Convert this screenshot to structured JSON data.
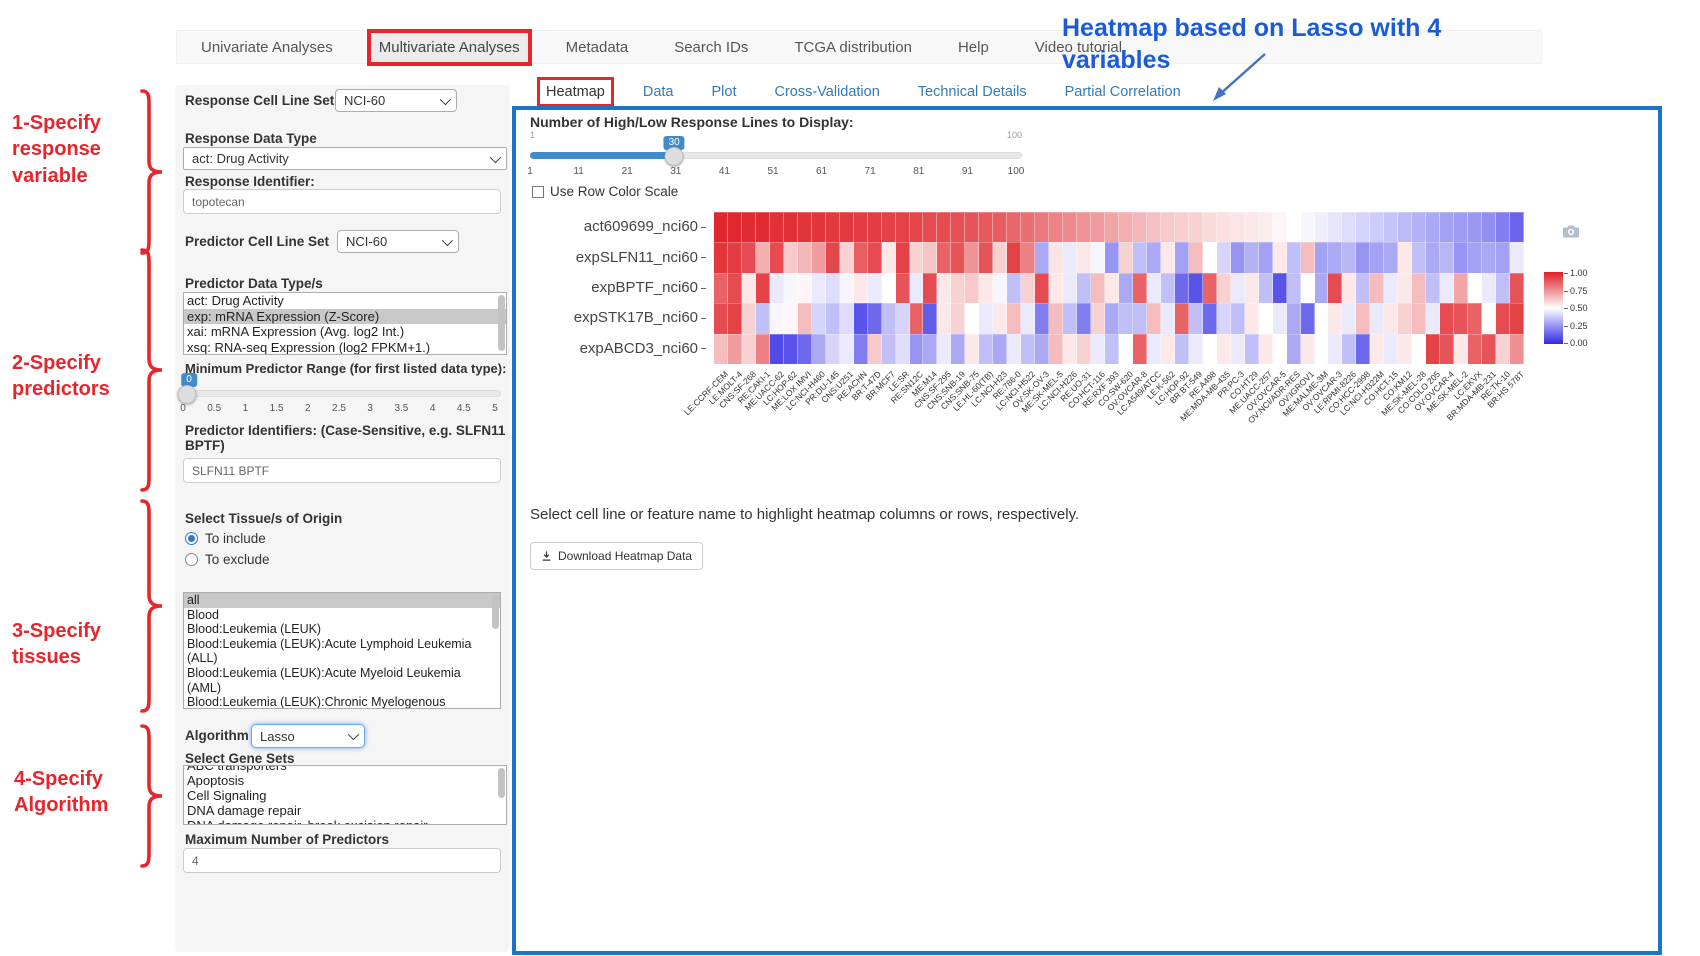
{
  "nav": {
    "items": [
      "Univariate Analyses",
      "Multivariate Analyses",
      "Metadata",
      "Search IDs",
      "TCGA distribution",
      "Help",
      "Video tutorial"
    ],
    "active": "Multivariate Analyses"
  },
  "annotations": {
    "step1": "1-Specify response variable",
    "step2": "2-Specify predictors",
    "step3": "3-Specify tissues",
    "step4": "4-Specify Algorithm",
    "heatmap_note": "Heatmap based on Lasso with 4 variables"
  },
  "colors": {
    "annotation_red": "#e6262c",
    "annotation_blue": "#1b5cd6",
    "panel_border": "#1b74c5",
    "link_blue": "#337ab7",
    "slider_blue": "#428bca",
    "heat_red": "#de1e24",
    "heat_blue": "#3028e4",
    "list_highlight": "#c8c8c8"
  },
  "sidebar": {
    "response_cell_line_set_label": "Response Cell Line Set",
    "response_cell_line_set_value": "NCI-60",
    "response_data_type_label": "Response Data Type",
    "response_data_type_value": "act: Drug Activity",
    "response_identifier_label": "Response Identifier:",
    "response_identifier_value": "topotecan",
    "predictor_cell_line_set_label": "Predictor Cell Line Set",
    "predictor_cell_line_set_value": "NCI-60",
    "predictor_data_types_label": "Predictor Data Type/s",
    "predictor_data_types_options": [
      "act: Drug Activity",
      "exp: mRNA Expression (Z-Score)",
      "xai: mRNA Expression (Avg. log2 Int.)",
      "xsq: RNA-seq Expression (log2 FPKM+1.)"
    ],
    "predictor_data_types_selected": "exp: mRNA Expression (Z-Score)",
    "min_predictor_range_label": "Minimum Predictor Range (for first listed data type):",
    "min_range_slider": {
      "value": "0",
      "ticks": [
        "0",
        "0.5",
        "1",
        "1.5",
        "2",
        "2.5",
        "3",
        "3.5",
        "4",
        "4.5",
        "5"
      ]
    },
    "predictor_identifiers_label": "Predictor Identifiers: (Case-Sensitive, e.g. SLFN11 BPTF)",
    "predictor_identifiers_value": "SLFN11 BPTF",
    "tissue_label": "Select Tissue/s of Origin",
    "tissue_radio_include": "To include",
    "tissue_radio_exclude": "To exclude",
    "tissue_options": [
      "all",
      "Blood",
      "Blood:Leukemia (LEUK)",
      "Blood:Leukemia (LEUK):Acute Lymphoid Leukemia (ALL)",
      "Blood:Leukemia (LEUK):Acute Myeloid Leukemia (AML)",
      "Blood:Leukemia (LEUK):Chronic Myelogenous Leukemia (CML)"
    ],
    "tissue_selected": "all",
    "algorithm_label": "Algorithm",
    "algorithm_value": "Lasso",
    "gene_sets_label": "Select Gene Sets",
    "gene_sets_options": [
      "ABC transporters",
      "Apoptosis",
      "Cell Signaling",
      "DNA damage repair",
      "DNA damage repair, break excision repair"
    ],
    "max_predictors_label": "Maximum Number of Predictors",
    "max_predictors_value": "4"
  },
  "main": {
    "tabs": [
      "Heatmap",
      "Data",
      "Plot",
      "Cross-Validation",
      "Technical Details",
      "Partial Correlation"
    ],
    "active_tab": "Heatmap",
    "slider_label": "Number of High/Low Response Lines to Display:",
    "slider": {
      "min_label": "1",
      "max_label": "100",
      "value": "30",
      "ticks": [
        "1",
        "11",
        "21",
        "31",
        "41",
        "51",
        "61",
        "71",
        "81",
        "91",
        "100"
      ]
    },
    "row_color_scale_label": "Use Row Color Scale",
    "hint_text": "Select cell line or feature name to highlight heatmap columns or rows, respectively.",
    "download_button": "Download Heatmap Data"
  },
  "chart_data": {
    "type": "heatmap",
    "rows": [
      "act609699_nci60",
      "expSLFN11_nci60",
      "expBPTF_nci60",
      "expSTK17B_nci60",
      "expABCD3_nci60"
    ],
    "columns": [
      "LE:CCRF-CEM",
      "LE:MOLT-4",
      "CNS:SF-268",
      "RE:CAKI-1",
      "ME:UACC-62",
      "LC:HOP-62",
      "ME:LOX IMVI",
      "LC:NCI-H460",
      "PR:DU-145",
      "CNS:U251",
      "RE:ACHN",
      "BR:T-47D",
      "BR:MCF7",
      "LE:SR",
      "RE:SN12C",
      "ME:M14",
      "CNS:SF-295",
      "CNS:SNB-19",
      "CNS:SNB-75",
      "LE:HL-60(TB)",
      "LC:NCI-H23",
      "RE:786-0",
      "LC:NCI-H522",
      "OV:SK-OV-3",
      "ME:SK-MEL-5",
      "LC:NCI-H226",
      "RE:UO-31",
      "CO:HCT-116",
      "RE:RXF 393",
      "CO:SW-620",
      "OV:OVCAR-8",
      "LC:A549/ATCC",
      "LE:K-562",
      "LC:HOP-92",
      "BR:BT-549",
      "RE:A498",
      "ME:MDA-MB-435",
      "PR:PC-3",
      "CO:HT29",
      "ME:UACC-257",
      "OV:OVCAR-5",
      "OV:NCI/ADR-RES",
      "OV:IGROV1",
      "ME:MALME-3M",
      "OV:OVCAR-3",
      "LE:RPMI-8226",
      "CO:HCC-2998",
      "LC:NCI-H322M",
      "CO:HCT-15",
      "CO:KM12",
      "ME:SK-MEL-28",
      "CO:COLO 205",
      "OV:OVCAR-4",
      "ME:SK-MEL-2",
      "LC:EKVX",
      "BR:MDA-MB-231",
      "RE:TK-10",
      "BR:HS 578T"
    ],
    "values": [
      [
        0.98,
        0.98,
        0.97,
        0.97,
        0.96,
        0.96,
        0.95,
        0.95,
        0.94,
        0.94,
        0.93,
        0.93,
        0.92,
        0.92,
        0.91,
        0.9,
        0.9,
        0.89,
        0.88,
        0.87,
        0.86,
        0.84,
        0.82,
        0.8,
        0.78,
        0.76,
        0.74,
        0.72,
        0.7,
        0.68,
        0.66,
        0.64,
        0.62,
        0.61,
        0.6,
        0.58,
        0.57,
        0.56,
        0.55,
        0.54,
        0.52,
        0.5,
        0.48,
        0.46,
        0.44,
        0.42,
        0.4,
        0.38,
        0.36,
        0.34,
        0.32,
        0.3,
        0.28,
        0.27,
        0.26,
        0.24,
        0.2,
        0.14
      ],
      [
        0.95,
        0.93,
        0.9,
        0.68,
        0.9,
        0.62,
        0.66,
        0.72,
        0.91,
        0.6,
        0.86,
        0.9,
        0.55,
        0.92,
        0.6,
        0.63,
        0.85,
        0.88,
        0.74,
        0.88,
        0.6,
        0.92,
        0.78,
        0.3,
        0.56,
        0.45,
        0.55,
        0.48,
        0.25,
        0.6,
        0.35,
        0.3,
        0.55,
        0.28,
        0.65,
        0.5,
        0.4,
        0.25,
        0.32,
        0.28,
        0.55,
        0.35,
        0.65,
        0.28,
        0.3,
        0.33,
        0.25,
        0.28,
        0.3,
        0.55,
        0.35,
        0.3,
        0.33,
        0.25,
        0.28,
        0.3,
        0.28,
        0.45
      ],
      [
        0.85,
        0.9,
        0.55,
        0.92,
        0.45,
        0.48,
        0.52,
        0.45,
        0.42,
        0.48,
        0.55,
        0.45,
        0.5,
        0.88,
        0.45,
        0.9,
        0.55,
        0.6,
        0.62,
        0.55,
        0.48,
        0.35,
        0.6,
        0.9,
        0.55,
        0.45,
        0.35,
        0.65,
        0.55,
        0.3,
        0.85,
        0.45,
        0.35,
        0.15,
        0.1,
        0.85,
        0.6,
        0.45,
        0.55,
        0.35,
        0.1,
        0.35,
        0.5,
        0.3,
        0.9,
        0.55,
        0.35,
        0.65,
        0.45,
        0.55,
        0.65,
        0.35,
        0.45,
        0.7,
        0.5,
        0.45,
        0.35,
        0.88
      ],
      [
        0.9,
        0.92,
        0.6,
        0.35,
        0.48,
        0.52,
        0.65,
        0.4,
        0.35,
        0.42,
        0.1,
        0.15,
        0.35,
        0.4,
        0.85,
        0.12,
        0.55,
        0.6,
        0.5,
        0.45,
        0.55,
        0.65,
        0.45,
        0.2,
        0.65,
        0.35,
        0.2,
        0.6,
        0.3,
        0.35,
        0.35,
        0.65,
        0.45,
        0.85,
        0.35,
        0.15,
        0.4,
        0.35,
        0.55,
        0.5,
        0.45,
        0.3,
        0.15,
        0.5,
        0.55,
        0.45,
        0.65,
        0.45,
        0.55,
        0.6,
        0.65,
        0.45,
        0.9,
        0.88,
        0.85,
        0.5,
        0.9,
        0.92
      ],
      [
        0.65,
        0.72,
        0.6,
        0.78,
        0.08,
        0.1,
        0.15,
        0.3,
        0.4,
        0.45,
        0.2,
        0.62,
        0.35,
        0.42,
        0.25,
        0.3,
        0.45,
        0.3,
        0.55,
        0.35,
        0.3,
        0.45,
        0.35,
        0.3,
        0.65,
        0.55,
        0.6,
        0.45,
        0.35,
        0.5,
        0.85,
        0.45,
        0.55,
        0.35,
        0.45,
        0.5,
        0.55,
        0.45,
        0.35,
        0.55,
        0.5,
        0.3,
        0.55,
        0.5,
        0.45,
        0.35,
        0.15,
        0.55,
        0.45,
        0.55,
        0.5,
        0.92,
        0.88,
        0.55,
        0.85,
        0.88,
        0.6,
        0.75
      ]
    ],
    "colorbar_ticks": [
      "1.00",
      "0.75",
      "0.50",
      "0.25",
      "0.00"
    ],
    "value_range": [
      0,
      1
    ]
  }
}
